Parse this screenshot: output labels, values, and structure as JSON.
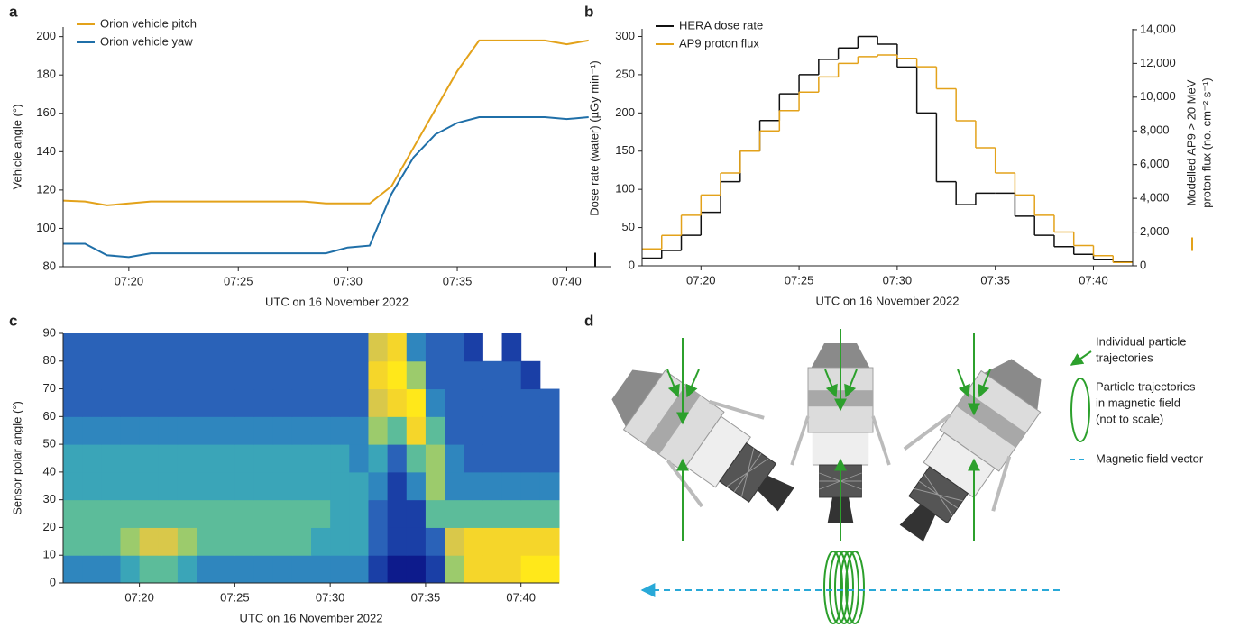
{
  "chart_data": [
    {
      "type": "line",
      "label": "a",
      "ylabel": "Vehicle angle (°)",
      "xlabel": "UTC on 16 November 2022",
      "x": [
        "07:17",
        "07:18",
        "07:19",
        "07:20",
        "07:21",
        "07:22",
        "07:23",
        "07:24",
        "07:25",
        "07:26",
        "07:27",
        "07:28",
        "07:29",
        "07:30",
        "07:31",
        "07:32",
        "07:33",
        "07:34",
        "07:35",
        "07:36",
        "07:37",
        "07:38",
        "07:39",
        "07:40",
        "07:41"
      ],
      "series": [
        {
          "name": "Orion vehicle pitch",
          "color": "#e3a21a",
          "values": [
            114.5,
            114,
            112,
            113,
            114,
            114,
            114,
            114,
            114,
            114,
            114,
            114,
            113,
            113,
            113,
            122,
            142,
            162,
            182,
            198,
            198,
            198,
            198,
            196,
            198
          ]
        },
        {
          "name": "Orion vehicle yaw",
          "color": "#1f6fa8",
          "values": [
            92,
            92,
            86,
            85,
            87,
            87,
            87,
            87,
            87,
            87,
            87,
            87,
            87,
            90,
            91,
            118,
            137,
            149,
            155,
            158,
            158,
            158,
            158,
            157,
            158
          ]
        }
      ],
      "xlim": [
        "07:17",
        "07:42"
      ],
      "xticks": [
        "07:20",
        "07:25",
        "07:30",
        "07:35",
        "07:40"
      ],
      "ylim": [
        80,
        205
      ],
      "yticks": [
        80,
        100,
        120,
        140,
        160,
        180,
        200
      ]
    },
    {
      "type": "step",
      "label": "b",
      "ylabel": "Dose rate (water) (µGy min⁻¹)",
      "y2label": [
        "Modelled AP9 > 20 MeV",
        "proton flux (no. cm⁻² s⁻¹)"
      ],
      "xlabel": "UTC on 16 November 2022",
      "x": [
        "07:17",
        "07:18",
        "07:19",
        "07:20",
        "07:21",
        "07:22",
        "07:23",
        "07:24",
        "07:25",
        "07:26",
        "07:27",
        "07:28",
        "07:29",
        "07:30",
        "07:31",
        "07:32",
        "07:33",
        "07:34",
        "07:35",
        "07:36",
        "07:37",
        "07:38",
        "07:39",
        "07:40",
        "07:41"
      ],
      "series": [
        {
          "name": "HERA dose rate",
          "color": "#111111",
          "values": [
            10,
            20,
            40,
            70,
            110,
            150,
            190,
            225,
            250,
            270,
            285,
            300,
            290,
            260,
            200,
            110,
            80,
            95,
            95,
            65,
            40,
            25,
            15,
            8,
            5
          ]
        },
        {
          "name": "AP9 proton flux",
          "color": "#e3a21a",
          "axis": "y2",
          "values": [
            1000,
            1800,
            3000,
            4200,
            5500,
            6800,
            8000,
            9200,
            10300,
            11200,
            12000,
            12400,
            12500,
            12300,
            11800,
            10500,
            8600,
            7000,
            5500,
            4200,
            3000,
            2000,
            1200,
            600,
            200
          ]
        }
      ],
      "xlim": [
        "07:17",
        "07:42"
      ],
      "xticks": [
        "07:20",
        "07:25",
        "07:30",
        "07:35",
        "07:40"
      ],
      "ylim": [
        0,
        310
      ],
      "yticks": [
        0,
        50,
        100,
        150,
        200,
        250,
        300
      ],
      "y2lim": [
        0,
        14050
      ],
      "y2ticks": [
        0,
        {
          "value": 2000,
          "label": "2,000"
        },
        {
          "value": 4000,
          "label": "4,000"
        },
        {
          "value": 6000,
          "label": "6,000"
        },
        {
          "value": 8000,
          "label": "8,000"
        },
        {
          "value": 10000,
          "label": "10,000"
        },
        {
          "value": 12000,
          "label": "12,000"
        },
        {
          "value": 14000,
          "label": "14,000"
        }
      ]
    },
    {
      "type": "heatmap",
      "label": "c",
      "ylabel": "Sensor polar angle (°)",
      "xlabel": "UTC on 16 November 2022",
      "x": [
        "07:16",
        "07:17",
        "07:18",
        "07:19",
        "07:20",
        "07:21",
        "07:22",
        "07:23",
        "07:24",
        "07:25",
        "07:26",
        "07:27",
        "07:28",
        "07:29",
        "07:30",
        "07:31",
        "07:32",
        "07:33",
        "07:34",
        "07:35",
        "07:36",
        "07:37",
        "07:38",
        "07:39",
        "07:40",
        "07:41"
      ],
      "ybins": [
        0,
        10,
        20,
        30,
        40,
        50,
        60,
        70,
        80,
        90
      ],
      "z": [
        [
          3,
          3,
          3,
          4,
          5,
          5,
          4,
          3,
          3,
          3,
          3,
          3,
          3,
          3,
          3,
          3,
          1,
          0,
          0,
          1,
          6,
          8,
          8,
          8,
          9,
          9
        ],
        [
          5,
          5,
          5,
          6,
          7,
          7,
          6,
          5,
          5,
          5,
          5,
          5,
          5,
          4,
          4,
          4,
          2,
          1,
          1,
          2,
          7,
          8,
          8,
          8,
          8,
          8
        ],
        [
          5,
          5,
          5,
          5,
          5,
          5,
          5,
          5,
          5,
          5,
          5,
          5,
          5,
          5,
          4,
          4,
          2,
          1,
          1,
          5,
          5,
          5,
          5,
          5,
          5,
          5
        ],
        [
          4,
          4,
          4,
          4,
          4,
          4,
          4,
          4,
          4,
          4,
          4,
          4,
          4,
          4,
          4,
          4,
          3,
          1,
          3,
          6,
          3,
          3,
          3,
          3,
          3,
          3
        ],
        [
          4,
          4,
          4,
          4,
          4,
          4,
          4,
          4,
          4,
          4,
          4,
          4,
          4,
          4,
          4,
          3,
          4,
          2,
          5,
          6,
          3,
          2,
          2,
          2,
          2,
          2
        ],
        [
          3,
          3,
          3,
          3,
          3,
          3,
          3,
          3,
          3,
          3,
          3,
          3,
          3,
          3,
          3,
          3,
          6,
          5,
          8,
          5,
          2,
          2,
          2,
          2,
          2,
          2
        ],
        [
          2,
          2,
          2,
          2,
          2,
          2,
          2,
          2,
          2,
          2,
          2,
          2,
          2,
          2,
          2,
          2,
          7,
          8,
          9,
          3,
          2,
          2,
          2,
          2,
          2,
          2
        ],
        [
          2,
          2,
          2,
          2,
          2,
          2,
          2,
          2,
          2,
          2,
          2,
          2,
          2,
          2,
          2,
          2,
          8,
          9,
          6,
          2,
          2,
          2,
          2,
          2,
          1,
          null
        ],
        [
          2,
          2,
          2,
          2,
          2,
          2,
          2,
          2,
          2,
          2,
          2,
          2,
          2,
          2,
          2,
          2,
          7,
          8,
          3,
          2,
          2,
          1,
          null,
          1,
          null,
          null
        ]
      ],
      "colors": [
        "#0d1b8c",
        "#1a3fa6",
        "#2a62b8",
        "#2f86be",
        "#3aa5b8",
        "#5cbc9a",
        "#9ccb6c",
        "#d9c84a",
        "#f5d62a",
        "#ffe81a"
      ],
      "xlim": [
        "07:16",
        "07:42"
      ],
      "xticks": [
        "07:20",
        "07:25",
        "07:30",
        "07:35",
        "07:40"
      ],
      "ylim": [
        0,
        90
      ],
      "yticks": [
        0,
        10,
        20,
        30,
        40,
        50,
        60,
        70,
        80,
        90
      ]
    }
  ],
  "diagram": {
    "label": "d",
    "legend": [
      {
        "lines": [
          "Individual particle",
          "trajectories"
        ]
      },
      {
        "lines": [
          "Particle trajectories",
          "in magnetic field",
          "(not to scale)"
        ]
      },
      {
        "lines": [
          "Magnetic field vector"
        ]
      }
    ]
  }
}
